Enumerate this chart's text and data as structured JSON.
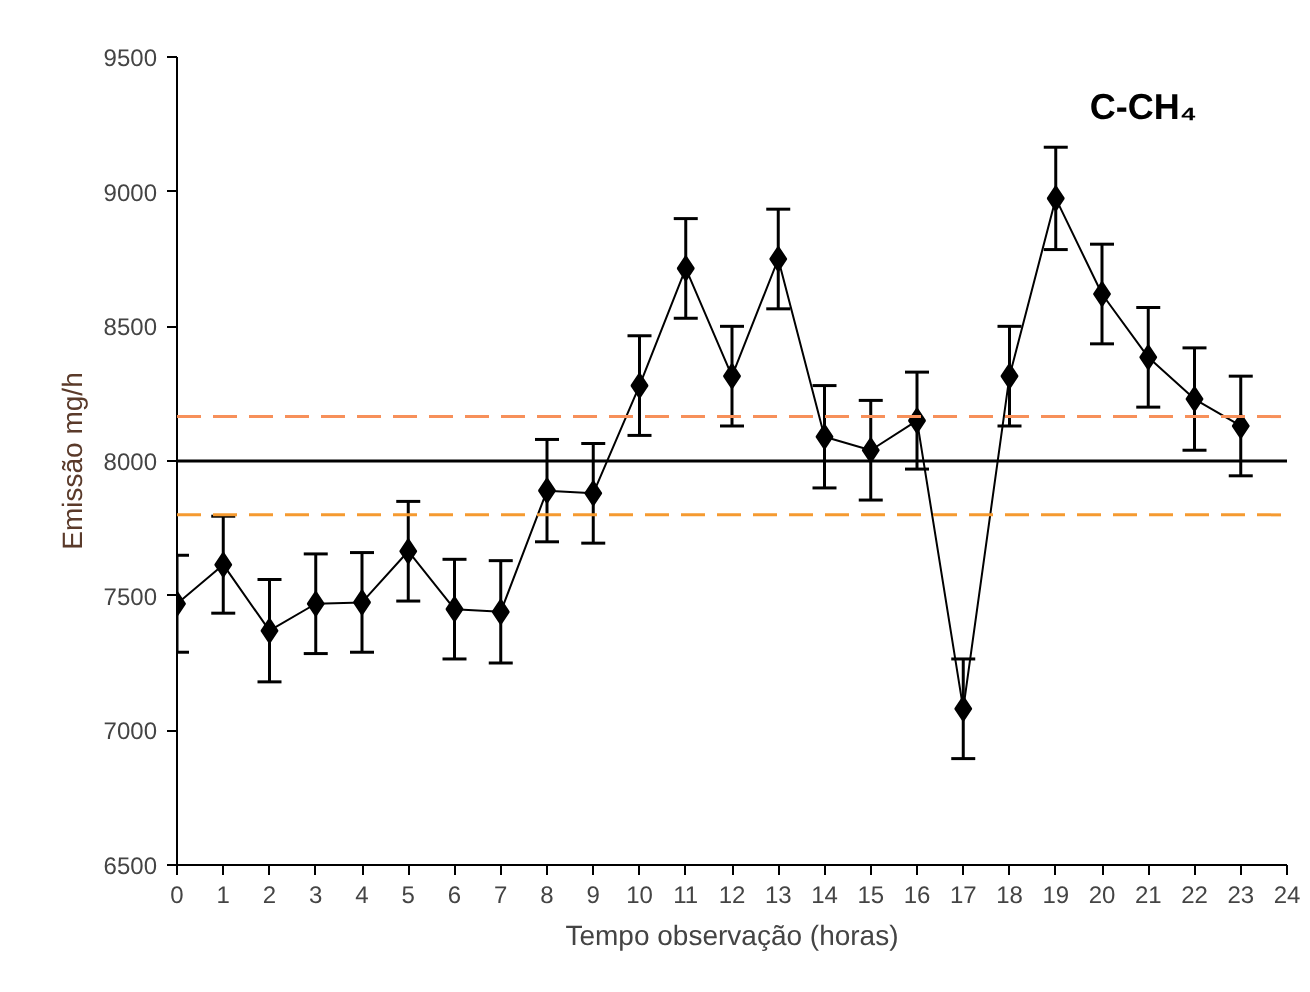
{
  "chart_data": {
    "type": "line",
    "title": "C-CH₄",
    "xlabel": "Tempo observação (horas)",
    "ylabel": "Emissão mg/h",
    "x": [
      0,
      1,
      2,
      3,
      4,
      5,
      6,
      7,
      8,
      9,
      10,
      11,
      12,
      13,
      14,
      15,
      16,
      17,
      18,
      19,
      20,
      21,
      22,
      23
    ],
    "series": [
      {
        "color": "#000000",
        "values": [
          7470,
          7615,
          7370,
          7470,
          7475,
          7665,
          7450,
          7440,
          7890,
          7880,
          8280,
          8715,
          8315,
          8750,
          8090,
          8040,
          8150,
          7080,
          8315,
          8975,
          8620,
          8385,
          8230,
          8130
        ],
        "errors": [
          180,
          180,
          190,
          185,
          185,
          185,
          185,
          190,
          190,
          185,
          185,
          185,
          185,
          185,
          190,
          185,
          180,
          185,
          185,
          190,
          185,
          185,
          190,
          185
        ]
      }
    ],
    "xlim": [
      0,
      24
    ],
    "xticks": [
      0,
      1,
      2,
      3,
      4,
      5,
      6,
      7,
      8,
      9,
      10,
      11,
      12,
      13,
      14,
      15,
      16,
      17,
      18,
      19,
      20,
      21,
      22,
      23,
      24
    ],
    "ylim": [
      6500,
      9500
    ],
    "yticks": [
      6500,
      7000,
      7500,
      8000,
      8500,
      9000,
      9500
    ],
    "ref_lines": [
      {
        "axis": "y",
        "value": 8000,
        "color": "#000000",
        "line_style": "solid"
      },
      {
        "axis": "y",
        "value": 8165,
        "color": "#f7905a",
        "line_style": "dashed"
      },
      {
        "axis": "y",
        "value": 7800,
        "color": "#f59a30",
        "line_style": "dashed"
      }
    ],
    "grid": false,
    "marker": "diamond",
    "line_style": "solid"
  }
}
